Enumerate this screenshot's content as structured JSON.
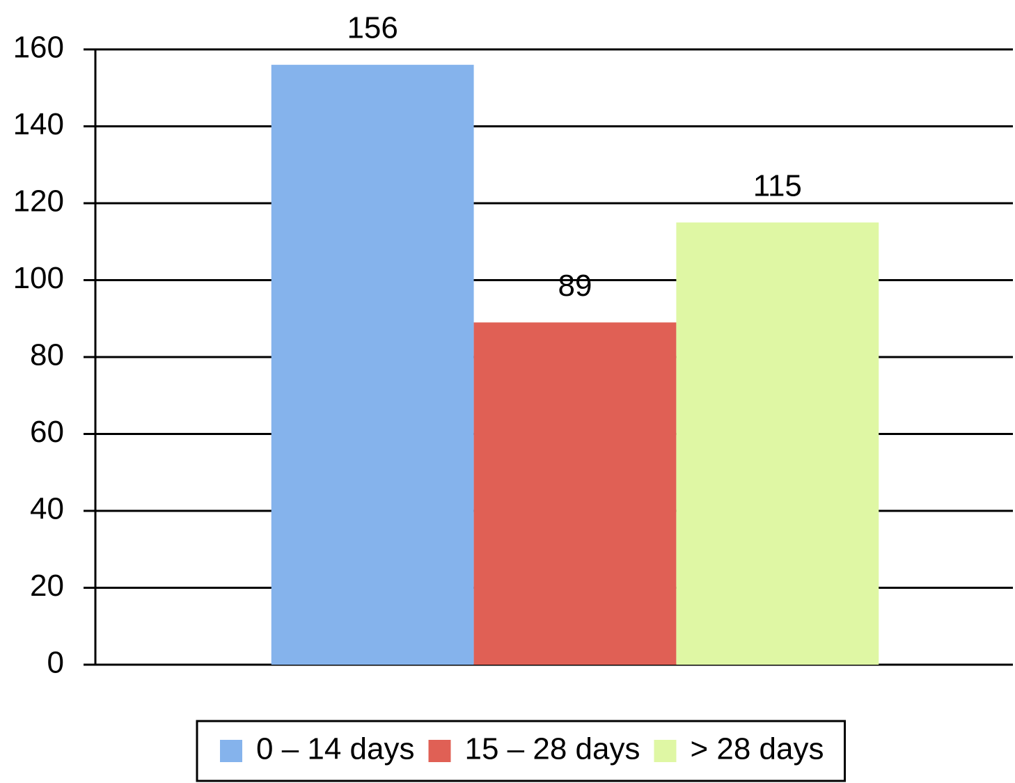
{
  "chart_data": {
    "type": "bar",
    "categories": [
      null
    ],
    "series": [
      {
        "name": "0 – 14 days",
        "color": "#85b3ec",
        "values": [
          156
        ]
      },
      {
        "name": "15 – 28 days",
        "color": "#e06055",
        "values": [
          89
        ]
      },
      {
        "name": "> 28 days",
        "color": "#dff7a4",
        "values": [
          115
        ]
      }
    ],
    "ylim": [
      0,
      160
    ],
    "yticks": [
      0,
      20,
      40,
      60,
      80,
      100,
      120,
      140,
      160
    ],
    "grid": true,
    "legend": "bottom"
  }
}
